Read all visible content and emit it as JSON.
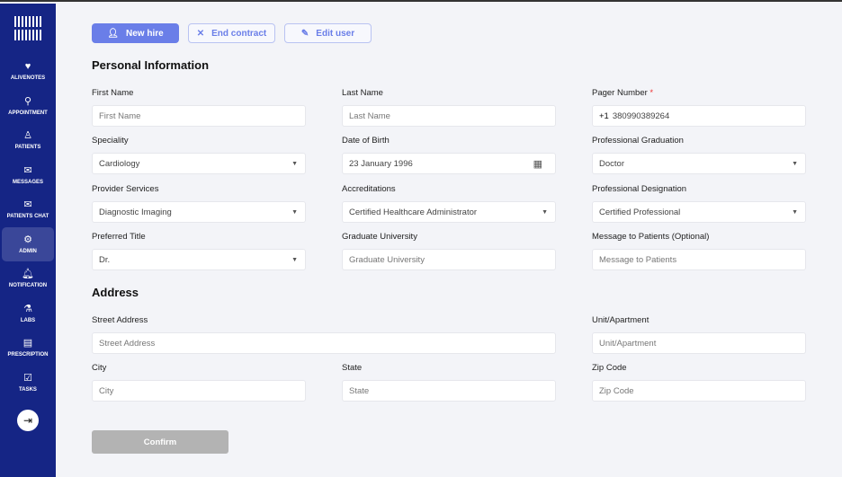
{
  "sidebar": {
    "items": [
      {
        "label": "ALIVENOTES",
        "icon": "heart-icon",
        "glyph": "♥"
      },
      {
        "label": "APPOINTMENT",
        "icon": "appointment-icon",
        "glyph": "⚲"
      },
      {
        "label": "PATIENTS",
        "icon": "patients-icon",
        "glyph": "♙"
      },
      {
        "label": "MESSAGES",
        "icon": "mail-icon",
        "glyph": "✉"
      },
      {
        "label": "PATIENTS CHAT",
        "icon": "chat-mail-icon",
        "glyph": "✉"
      },
      {
        "label": "ADMIN",
        "icon": "gear-icon",
        "glyph": "⚙",
        "active": true
      },
      {
        "label": "NOTIFICATION",
        "icon": "bell-icon",
        "glyph": "🔔︎"
      },
      {
        "label": "LABS",
        "icon": "flask-icon",
        "glyph": "⚗"
      },
      {
        "label": "PRESCRIPTION",
        "icon": "prescription-icon",
        "glyph": "▤"
      },
      {
        "label": "TASKS",
        "icon": "calendar-check-icon",
        "glyph": "☑"
      }
    ],
    "logout_glyph": "⇥"
  },
  "toolbar": {
    "new_hire": "New hire",
    "end_contract": "End contract",
    "edit_user": "Edit user"
  },
  "personal": {
    "title": "Personal Information",
    "first_name": {
      "label": "First Name",
      "placeholder": "First Name"
    },
    "last_name": {
      "label": "Last Name",
      "placeholder": "Last Name"
    },
    "pager": {
      "label": "Pager Number",
      "required": "*",
      "prefix": "+1",
      "value": "380990389264"
    },
    "speciality": {
      "label": "Speciality",
      "value": "Cardiology"
    },
    "dob": {
      "label": "Date of Birth",
      "value": "23 January 1996"
    },
    "graduation": {
      "label": "Professional Graduation",
      "value": "Doctor"
    },
    "services": {
      "label": "Provider Services",
      "value": "Diagnostic Imaging"
    },
    "accreditations": {
      "label": "Accreditations",
      "value": "Certified Healthcare Administrator"
    },
    "designation": {
      "label": "Professional Designation",
      "value": "Certified Professional"
    },
    "title_pref": {
      "label": "Preferred Title",
      "value": "Dr."
    },
    "university": {
      "label": "Graduate University",
      "placeholder": "Graduate University"
    },
    "message": {
      "label": "Message to Patients (Optional)",
      "placeholder": "Message to Patients"
    }
  },
  "address": {
    "title": "Address",
    "street": {
      "label": "Street Address",
      "placeholder": "Street Address"
    },
    "unit": {
      "label": "Unit/Apartment",
      "placeholder": "Unit/Apartment"
    },
    "city": {
      "label": "City",
      "placeholder": "City"
    },
    "state": {
      "label": "State",
      "placeholder": "State"
    },
    "zip": {
      "label": "Zip Code",
      "placeholder": "Zip Code"
    }
  },
  "confirm": "Confirm"
}
